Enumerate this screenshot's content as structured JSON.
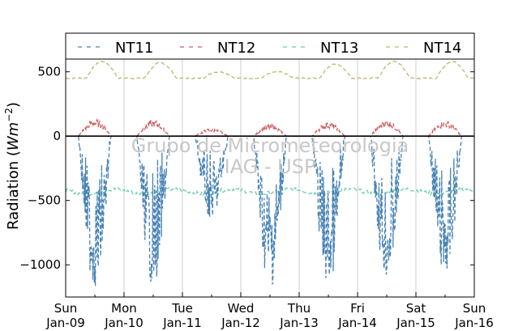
{
  "chart_data": {
    "type": "line",
    "title": "",
    "xlabel": "",
    "ylabel": "Radiation (",
    "ylabel_math": "Wm",
    "ylabel_exp": "−2",
    "ylabel_close": ")",
    "watermark": [
      "Grupo de Micrometeorologia",
      "IAG - USP"
    ],
    "xlim": [
      0,
      7
    ],
    "ylim": [
      -1250,
      800
    ],
    "yticks": [
      500,
      0,
      -500,
      -1000
    ],
    "ytick_labels": [
      "500",
      "0",
      "−500",
      "−1000"
    ],
    "xticks": [
      {
        "x": 0,
        "day": "Sun",
        "date": "Jan-09"
      },
      {
        "x": 1,
        "day": "Mon",
        "date": "Jan-10"
      },
      {
        "x": 2,
        "day": "Tue",
        "date": "Jan-11"
      },
      {
        "x": 3,
        "day": "Wed",
        "date": "Jan-12"
      },
      {
        "x": 4,
        "day": "Thu",
        "date": "Jan-13"
      },
      {
        "x": 5,
        "day": "Fri",
        "date": "Jan-14"
      },
      {
        "x": 6,
        "day": "Sat",
        "date": "Jan-15"
      },
      {
        "x": 7,
        "day": "Sun",
        "date": "Jan-16"
      }
    ],
    "grid": true,
    "legend_position": "top",
    "series": [
      {
        "name": "NT11",
        "color": "#4682b4",
        "day_minima": [
          -1180,
          -1170,
          -660,
          -1190,
          -1180,
          -1130,
          -1120
        ],
        "day_scale": [
          1.0,
          1.0,
          0.55,
          0.95,
          1.0,
          0.95,
          0.95
        ]
      },
      {
        "name": "NT12",
        "color": "#cd5c5c",
        "day_maxima": [
          130,
          125,
          60,
          90,
          110,
          125,
          120
        ]
      },
      {
        "name": "NT13",
        "color": "#66cdaa",
        "mean": -430
      },
      {
        "name": "NT14",
        "color": "#bdb76b",
        "night_level": 450,
        "day_maxima": [
          580,
          570,
          500,
          500,
          560,
          580,
          580
        ]
      }
    ]
  }
}
